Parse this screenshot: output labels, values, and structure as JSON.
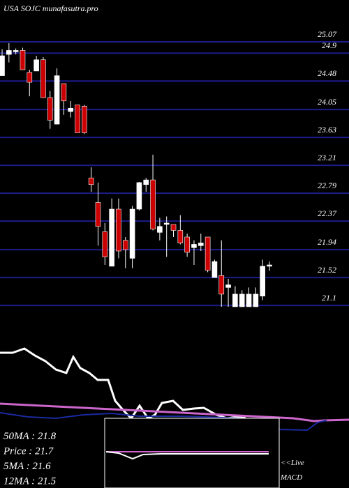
{
  "chart_data": {
    "type": "candlestick",
    "title": "USA SOJC munafasutra.pro",
    "up_color": "#ffffff",
    "down_color": "#cc0000",
    "grid_color": "#1c1c8c",
    "ylim": [
      21.08,
      25.7
    ],
    "yticks": [
      25.07,
      24.9,
      24.48,
      24.05,
      23.63,
      23.21,
      22.79,
      22.37,
      21.94,
      21.52,
      21.1
    ],
    "open": [
      24.56,
      24.88,
      24.92,
      24.94,
      24.61,
      24.63,
      24.8,
      24.23,
      23.83,
      24.44,
      24.02,
      24.12,
      24.1,
      23.02,
      22.65,
      22.21,
      21.69,
      22.55,
      22.08,
      21.81,
      22.55,
      22.92,
      22.99,
      22.2,
      22.32,
      22.32,
      22.23,
      22.13,
      21.97,
      22.0,
      22.13,
      21.52,
      21.55,
      21.37,
      21.08,
      21.08,
      21.08,
      21.08,
      21.24,
      21.69
    ],
    "high": [
      24.96,
      25.05,
      24.97,
      24.98,
      24.65,
      24.86,
      24.84,
      24.33,
      24.67,
      24.44,
      24.18,
      24.12,
      24.12,
      23.18,
      22.95,
      22.34,
      22.71,
      22.71,
      22.13,
      22.6,
      22.96,
      23.02,
      23.37,
      22.42,
      22.44,
      22.32,
      22.46,
      22.18,
      22.08,
      22.18,
      22.13,
      21.79,
      22.08,
      21.5,
      21.39,
      21.33,
      21.37,
      21.37,
      21.79,
      21.76
    ],
    "low": [
      24.56,
      24.76,
      24.88,
      24.65,
      24.25,
      24.63,
      24.23,
      23.76,
      23.83,
      23.97,
      23.93,
      23.7,
      23.68,
      22.81,
      22.0,
      21.71,
      21.69,
      21.81,
      21.66,
      21.66,
      22.53,
      22.81,
      22.23,
      22.08,
      21.83,
      22.13,
      22.02,
      21.83,
      21.71,
      21.92,
      21.6,
      21.52,
      21.08,
      21.08,
      21.08,
      21.08,
      21.08,
      21.08,
      21.18,
      21.62
    ],
    "close": [
      24.86,
      24.94,
      24.94,
      24.65,
      24.46,
      24.8,
      24.23,
      23.89,
      24.56,
      24.18,
      24.07,
      23.7,
      23.7,
      22.92,
      22.29,
      21.83,
      22.55,
      21.92,
      21.94,
      22.55,
      22.95,
      22.99,
      22.25,
      22.29,
      22.34,
      22.23,
      22.04,
      21.9,
      22.02,
      22.04,
      21.63,
      21.76,
      21.27,
      21.41,
      21.27,
      21.27,
      21.27,
      21.27,
      21.69,
      21.71
    ],
    "stats": [
      "50MA : 21.8",
      "Price : 21.7",
      "5MA : 21.6",
      "12MA : 21.5"
    ],
    "live_label": "<<Live",
    "macd_label": "MACD"
  }
}
